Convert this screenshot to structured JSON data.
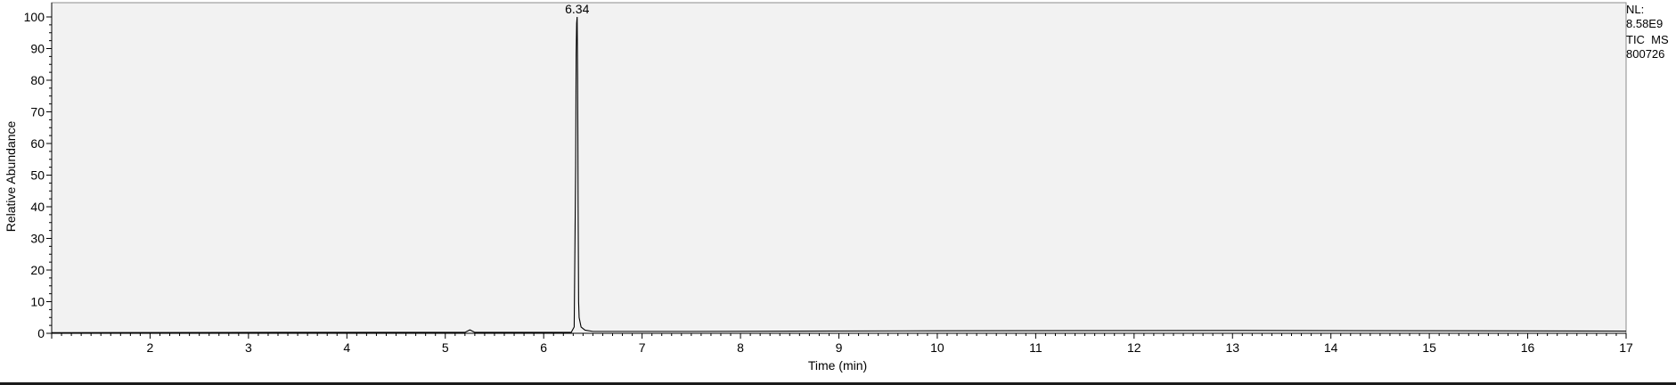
{
  "chart_data": {
    "type": "line",
    "title": "",
    "xlabel": "Time (min)",
    "ylabel": "Relative Abundance",
    "xlim": [
      1.0,
      17.0
    ],
    "ylim": [
      0,
      100
    ],
    "x_ticks": [
      2,
      3,
      4,
      5,
      6,
      7,
      8,
      9,
      10,
      11,
      12,
      13,
      14,
      15,
      16,
      17
    ],
    "y_ticks": [
      0,
      10,
      20,
      30,
      40,
      50,
      60,
      70,
      80,
      90,
      100
    ],
    "grid": false,
    "series": [
      {
        "color": "#000000",
        "x": [
          1.0,
          3.3,
          5.2,
          5.25,
          5.3,
          6.28,
          6.31,
          6.325,
          6.33,
          6.335,
          6.34,
          6.345,
          6.35,
          6.355,
          6.36,
          6.38,
          6.42,
          6.5,
          7.5,
          10.0,
          13.0,
          17.0
        ],
        "y": [
          0.2,
          0.3,
          0.3,
          1.1,
          0.3,
          0.3,
          2.0,
          53.0,
          88.0,
          98.0,
          100.0,
          81.0,
          40.0,
          10.0,
          5.0,
          2.0,
          1.0,
          0.6,
          0.6,
          0.8,
          0.9,
          0.7
        ]
      }
    ],
    "annotations": [
      {
        "x": 6.34,
        "y": 100,
        "text": "6.34"
      }
    ]
  },
  "side_info": {
    "nl_label": "NL:",
    "nl_value": "8.58E9",
    "trace": "TIC  MS",
    "sample": "800726"
  }
}
